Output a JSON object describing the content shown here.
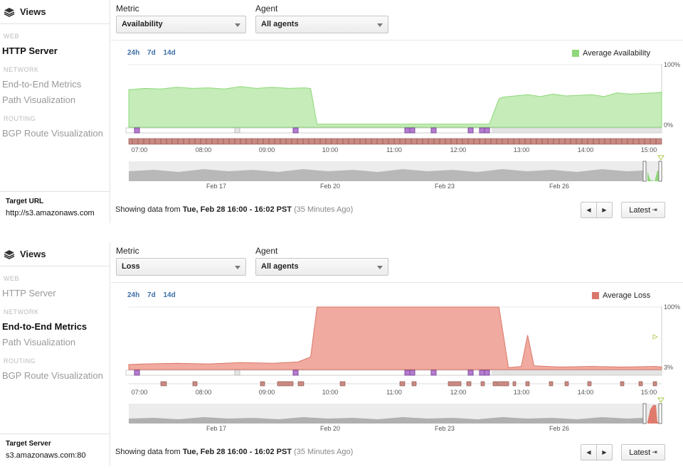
{
  "colors": {
    "availability": "#8fd87a",
    "availability_fill": "#c5ecb9",
    "loss": "#d9786a",
    "loss_fill": "#f1aaa0",
    "link": "#3d6ea8",
    "event_marker": "#b57bd1"
  },
  "panels": [
    {
      "sidebar": {
        "title": "Views",
        "title_icon": "layers-icon",
        "sections": [
          {
            "label": "WEB",
            "items": [
              {
                "label": "HTTP Server",
                "active": true
              }
            ]
          },
          {
            "label": "NETWORK",
            "items": [
              {
                "label": "End-to-End Metrics",
                "active": false
              },
              {
                "label": "Path Visualization",
                "active": false
              }
            ]
          },
          {
            "label": "ROUTING",
            "items": [
              {
                "label": "BGP Route Visualization",
                "active": false
              }
            ]
          }
        ],
        "target": {
          "label": "Target URL",
          "value": "http://s3.amazonaws.com"
        }
      },
      "metric": {
        "label": "Metric",
        "value": "Availability"
      },
      "agent": {
        "label": "Agent",
        "value": "All agents"
      },
      "ranges": [
        "24h",
        "7d",
        "14d"
      ],
      "legend": "Average Availability",
      "axis": {
        "top": "100%",
        "bottom": "0%"
      },
      "time_ticks": [
        "07:00",
        "08:00",
        "09:00",
        "10:00",
        "11:00",
        "12:00",
        "13:00",
        "14:00",
        "15:00"
      ],
      "overview_ticks": [
        "Feb 17",
        "Feb 20",
        "Feb 23",
        "Feb 26"
      ],
      "footer": {
        "prefix": "Showing data from",
        "range": "Tue, Feb 28 16:00 - 16:02 PST",
        "ago": "(35 Minutes Ago)"
      },
      "latest_label": "Latest",
      "chart_data": {
        "type": "area",
        "series": [
          {
            "name": "Average Availability",
            "x_hours": [
              6.75,
              7.0,
              7.25,
              7.5,
              7.75,
              8.0,
              8.25,
              8.5,
              8.75,
              9.0,
              9.25,
              9.5,
              9.6,
              9.7,
              9.8,
              10.0,
              11.0,
              12.0,
              12.4,
              12.55,
              12.6,
              12.8,
              13.0,
              13.2,
              13.4,
              13.6,
              13.8,
              14.0,
              14.2,
              14.4,
              14.6,
              14.8,
              15.0,
              15.1
            ],
            "values": [
              60,
              62,
              61,
              64,
              62,
              63,
              61,
              65,
              62,
              64,
              62,
              63,
              62,
              5,
              5,
              5,
              5,
              5,
              5,
              45,
              48,
              50,
              52,
              49,
              53,
              50,
              51,
              52,
              49,
              55,
              53,
              54,
              55,
              56
            ]
          }
        ],
        "ylim": [
          0,
          100
        ]
      }
    },
    {
      "sidebar": {
        "title": "Views",
        "title_icon": "layers-icon",
        "sections": [
          {
            "label": "WEB",
            "items": [
              {
                "label": "HTTP Server",
                "active": false
              }
            ]
          },
          {
            "label": "NETWORK",
            "items": [
              {
                "label": "End-to-End Metrics",
                "active": true
              },
              {
                "label": "Path Visualization",
                "active": false
              }
            ]
          },
          {
            "label": "ROUTING",
            "items": [
              {
                "label": "BGP Route Visualization",
                "active": false
              }
            ]
          }
        ],
        "target": {
          "label": "Target Server",
          "value": "s3.amazonaws.com:80"
        }
      },
      "metric": {
        "label": "Metric",
        "value": "Loss"
      },
      "agent": {
        "label": "Agent",
        "value": "All agents"
      },
      "ranges": [
        "24h",
        "7d",
        "14d"
      ],
      "legend": "Average Loss",
      "axis": {
        "top": "100%",
        "bottom": "3%"
      },
      "time_ticks": [
        "07:00",
        "08:00",
        "09:00",
        "10:00",
        "11:00",
        "12:00",
        "13:00",
        "14:00",
        "15:00"
      ],
      "overview_ticks": [
        "Feb 17",
        "Feb 20",
        "Feb 23",
        "Feb 26"
      ],
      "footer": {
        "prefix": "Showing data from",
        "range": "Tue, Feb 28 16:00 - 16:02 PST",
        "ago": "(35 Minutes Ago)"
      },
      "latest_label": "Latest",
      "chart_data": {
        "type": "area",
        "series": [
          {
            "name": "Average Loss",
            "x_hours": [
              6.75,
              7.0,
              7.5,
              8.0,
              8.5,
              9.0,
              9.4,
              9.6,
              9.7,
              10.0,
              11.0,
              12.0,
              12.4,
              12.55,
              12.7,
              12.9,
              13.0,
              13.1,
              13.5,
              14.0,
              14.5,
              15.0,
              15.1
            ],
            "values": [
              8,
              9,
              10,
              9,
              11,
              10,
              12,
              20,
              100,
              100,
              100,
              100,
              100,
              100,
              3,
              5,
              55,
              6,
              4,
              5,
              4,
              5,
              4
            ]
          }
        ],
        "ylim": [
          0,
          100
        ]
      }
    }
  ]
}
